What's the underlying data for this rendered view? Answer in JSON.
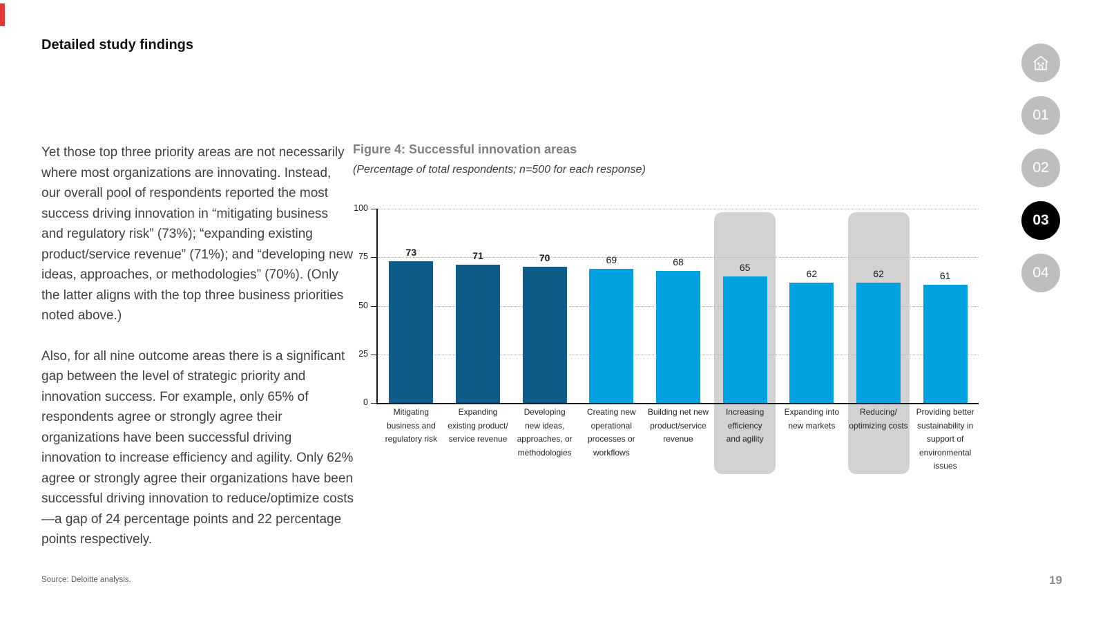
{
  "page": {
    "title": "Detailed study findings",
    "page_number": "19",
    "source": "Source: Deloitte analysis.",
    "accent_color": "#E23A3A"
  },
  "body": {
    "paragraph1": "Yet those top three priority areas are not necessarily where most organizations are innovating. Instead, our overall pool of respondents reported the most success driving innovation in “mitigating business and regulatory risk” (73%); “expanding existing product/service revenue” (71%); and “developing new ideas, approaches, or methodologies” (70%). (Only the latter aligns with the top three business priorities noted above.)",
    "paragraph2": "Also, for all nine outcome areas there is a significant gap between the level of strategic priority and innovation success. For example, only 65% of respondents agree or strongly agree their organizations have been successful driving innovation to increase efficiency and agility. Only 62% agree or strongly agree their organizations have been successful driving innovation to reduce/optimize costs—a gap of 24 percentage points and 22 percentage points respectively."
  },
  "figure": {
    "title": "Figure 4: Successful innovation areas",
    "subtitle": "(Percentage of total respondents; n=500 for each response)"
  },
  "nav": {
    "items": [
      {
        "label": "01",
        "active": false
      },
      {
        "label": "02",
        "active": false
      },
      {
        "label": "03",
        "active": true
      },
      {
        "label": "04",
        "active": false
      }
    ],
    "inactive_color": "#BEBEBE",
    "active_color": "#000000"
  },
  "chart_data": {
    "type": "bar",
    "title": "Figure 4: Successful innovation areas",
    "subtitle": "(Percentage of total respondents; n=500 for each response)",
    "xlabel": "",
    "ylabel": "",
    "ylim": [
      0,
      100
    ],
    "yticks": [
      0,
      25,
      50,
      75,
      100
    ],
    "grid": "horizontal-dotted",
    "legend": "none",
    "colors": {
      "dark": "#0E5C87",
      "light": "#00A1DE",
      "highlight": "#D2D2D2"
    },
    "categories": [
      "Mitigating\nbusiness and\nregulatory risk",
      "Expanding\nexisting product/\nservice revenue",
      "Developing\nnew ideas,\napproaches, or\nmethodologies",
      "Creating new\noperational\nprocesses or\nworkflows",
      "Building net new\nproduct/service\nrevenue",
      "Increasing\nefficiency\nand agility",
      "Expanding into\nnew markets",
      "Reducing/\noptimizing costs",
      "Providing better\nsustainability in\nsupport of\nenvironmental\nissues"
    ],
    "values": [
      73,
      71,
      70,
      69,
      68,
      65,
      62,
      62,
      61
    ],
    "bars": [
      {
        "label": "Mitigating\nbusiness and\nregulatory risk",
        "value": 73,
        "color": "dark",
        "value_bold": true,
        "highlighted": false
      },
      {
        "label": "Expanding\nexisting product/\nservice revenue",
        "value": 71,
        "color": "dark",
        "value_bold": true,
        "highlighted": false
      },
      {
        "label": "Developing\nnew ideas,\napproaches, or\nmethodologies",
        "value": 70,
        "color": "dark",
        "value_bold": true,
        "highlighted": false
      },
      {
        "label": "Creating new\noperational\nprocesses or\nworkflows",
        "value": 69,
        "color": "light",
        "value_bold": false,
        "highlighted": false
      },
      {
        "label": "Building net new\nproduct/service\nrevenue",
        "value": 68,
        "color": "light",
        "value_bold": false,
        "highlighted": false
      },
      {
        "label": "Increasing\nefficiency\nand agility",
        "value": 65,
        "color": "light",
        "value_bold": false,
        "highlighted": true
      },
      {
        "label": "Expanding into\nnew markets",
        "value": 62,
        "color": "light",
        "value_bold": false,
        "highlighted": false
      },
      {
        "label": "Reducing/\noptimizing costs",
        "value": 62,
        "color": "light",
        "value_bold": false,
        "highlighted": true
      },
      {
        "label": "Providing better\nsustainability in\nsupport of\nenvironmental\nissues",
        "value": 61,
        "color": "light",
        "value_bold": false,
        "highlighted": false
      }
    ]
  }
}
